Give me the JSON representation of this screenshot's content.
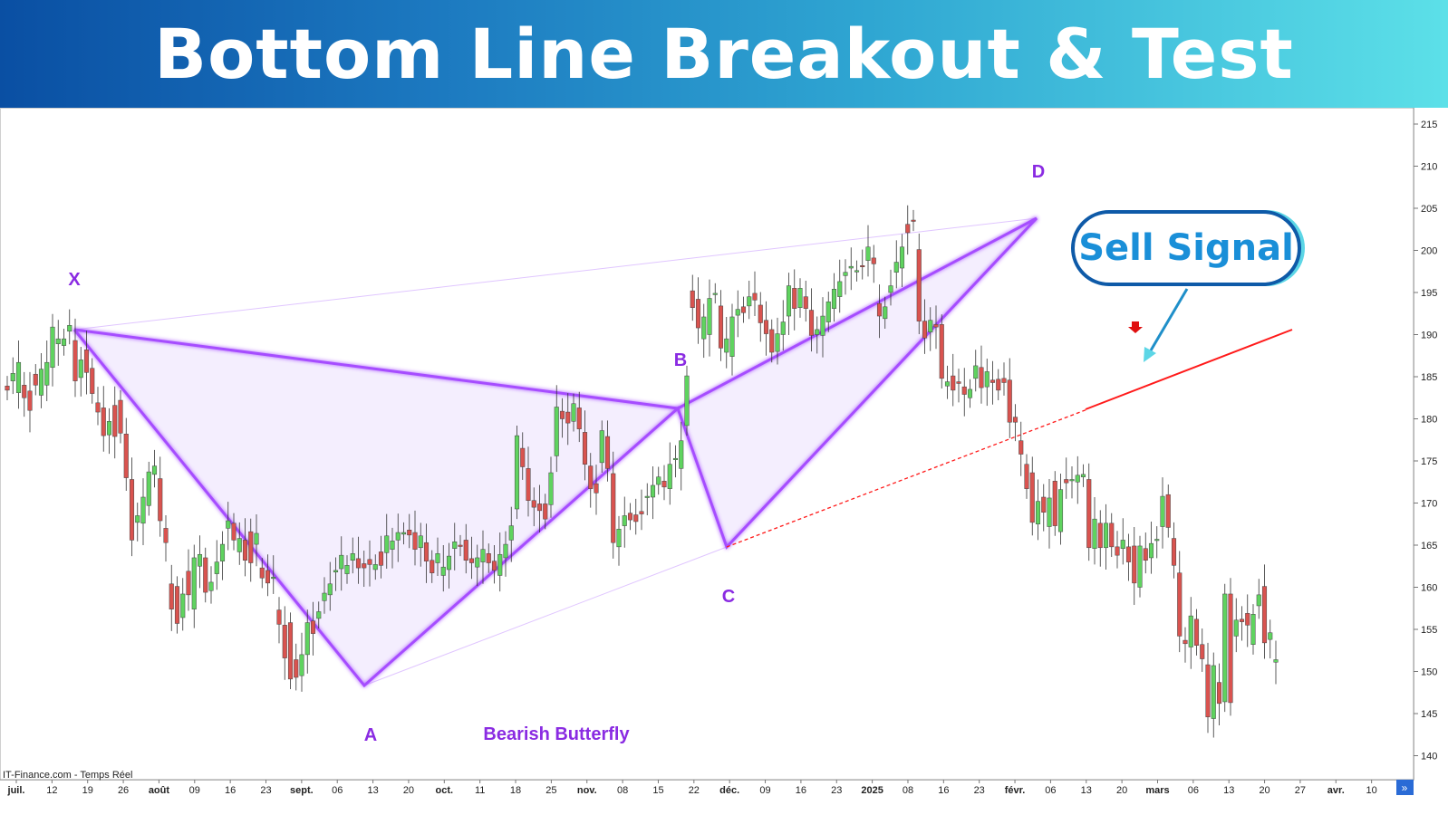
{
  "header": {
    "title": "Bottom Line Breakout & Test"
  },
  "annotations": {
    "sell_signal": "Sell Signal",
    "pattern_name": "Bearish Butterfly",
    "point_x": "X",
    "point_a": "A",
    "point_b": "B",
    "point_c": "C",
    "point_d": "D",
    "source": "IT-Finance.com - Temps Réel"
  },
  "colors": {
    "up_candle": "#5fd35f",
    "down_candle": "#d9534f",
    "pattern": "#a64dff",
    "pattern_fill": "#f4eefe",
    "breakout_line": "#ff1a1a",
    "arrow": "#1f8fc9"
  },
  "chart_data": {
    "type": "candlestick",
    "title": "",
    "xlabel": "",
    "ylabel": "",
    "ylim": [
      138,
      217
    ],
    "y_ticks": [
      215,
      210,
      205,
      200,
      195,
      190,
      185,
      180,
      175,
      170,
      165,
      160,
      155,
      150,
      145,
      140
    ],
    "x_ticks": [
      {
        "label": "juil.",
        "major": true
      },
      {
        "label": "12"
      },
      {
        "label": "19"
      },
      {
        "label": "26"
      },
      {
        "label": "août",
        "major": true
      },
      {
        "label": "09"
      },
      {
        "label": "16"
      },
      {
        "label": "23"
      },
      {
        "label": "sept.",
        "major": true
      },
      {
        "label": "06"
      },
      {
        "label": "13"
      },
      {
        "label": "20"
      },
      {
        "label": "oct.",
        "major": true
      },
      {
        "label": "11"
      },
      {
        "label": "18"
      },
      {
        "label": "25"
      },
      {
        "label": "nov.",
        "major": true
      },
      {
        "label": "08"
      },
      {
        "label": "15"
      },
      {
        "label": "22"
      },
      {
        "label": "déc.",
        "major": true
      },
      {
        "label": "09"
      },
      {
        "label": "16"
      },
      {
        "label": "23"
      },
      {
        "label": "2025",
        "major": true
      },
      {
        "label": "08"
      },
      {
        "label": "16"
      },
      {
        "label": "23"
      },
      {
        "label": "févr.",
        "major": true
      },
      {
        "label": "06"
      },
      {
        "label": "13"
      },
      {
        "label": "20"
      },
      {
        "label": "mars",
        "major": true
      },
      {
        "label": "06"
      },
      {
        "label": "13"
      },
      {
        "label": "20"
      },
      {
        "label": "27"
      },
      {
        "label": "avr.",
        "major": true
      },
      {
        "label": "10"
      }
    ],
    "series": [
      {
        "type": "candlestick",
        "values": [
          [
            183.9,
            183.4
          ],
          [
            184.5,
            185.4
          ],
          [
            183.1,
            186.7
          ],
          [
            184.0,
            182.5
          ],
          [
            183.3,
            181.0
          ],
          [
            185.3,
            184.0
          ],
          [
            182.8,
            185.9
          ],
          [
            184.0,
            186.7
          ],
          [
            186.1,
            190.9
          ],
          [
            188.9,
            189.5
          ],
          [
            188.7,
            189.5
          ],
          [
            190.4,
            191.1
          ],
          [
            189.3,
            184.5
          ],
          [
            184.9,
            187.0
          ],
          [
            188.2,
            185.5
          ],
          [
            186.0,
            183.0
          ],
          [
            181.9,
            180.8
          ],
          [
            181.3,
            178.0
          ],
          [
            178.1,
            179.7
          ],
          [
            181.6,
            177.9
          ],
          [
            182.2,
            178.3
          ],
          [
            178.2,
            173.0
          ],
          [
            172.8,
            165.6
          ],
          [
            167.7,
            168.5
          ],
          [
            167.6,
            170.7
          ],
          [
            169.7,
            173.7
          ],
          [
            173.4,
            174.4
          ],
          [
            172.9,
            167.9
          ],
          [
            167.0,
            165.3
          ],
          [
            160.4,
            157.4
          ],
          [
            160.1,
            155.7
          ],
          [
            156.4,
            159.2
          ],
          [
            161.9,
            159.1
          ],
          [
            157.4,
            163.5
          ],
          [
            162.5,
            163.9
          ],
          [
            163.5,
            159.4
          ],
          [
            159.6,
            160.6
          ],
          [
            161.6,
            163.0
          ],
          [
            163.1,
            165.1
          ],
          [
            167.0,
            167.9
          ],
          [
            167.6,
            165.6
          ],
          [
            164.2,
            165.8
          ],
          [
            165.6,
            163.2
          ],
          [
            166.6,
            162.9
          ],
          [
            165.1,
            166.4
          ],
          [
            162.3,
            161.1
          ],
          [
            162.0,
            160.5
          ],
          [
            161.1,
            161.2
          ],
          [
            157.3,
            155.6
          ],
          [
            155.5,
            151.6
          ],
          [
            155.8,
            149.1
          ],
          [
            151.4,
            149.3
          ],
          [
            149.5,
            152.0
          ],
          [
            152.0,
            155.8
          ],
          [
            156.0,
            154.5
          ],
          [
            156.3,
            157.1
          ],
          [
            158.4,
            159.3
          ],
          [
            159.1,
            160.4
          ],
          [
            161.8,
            162.0
          ],
          [
            162.2,
            163.8
          ],
          [
            161.6,
            162.6
          ],
          [
            163.2,
            164.0
          ],
          [
            163.4,
            162.3
          ],
          [
            162.8,
            162.3
          ],
          [
            163.3,
            162.7
          ],
          [
            162.1,
            162.7
          ],
          [
            164.2,
            162.6
          ],
          [
            164.1,
            166.1
          ],
          [
            164.5,
            165.5
          ],
          [
            165.6,
            166.5
          ],
          [
            166.3,
            166.5
          ],
          [
            166.8,
            166.2
          ],
          [
            166.5,
            164.5
          ],
          [
            164.7,
            166.1
          ],
          [
            165.3,
            163.1
          ],
          [
            163.2,
            161.7
          ],
          [
            162.9,
            164.0
          ],
          [
            161.4,
            162.4
          ],
          [
            162.1,
            163.7
          ],
          [
            164.6,
            165.4
          ],
          [
            165.0,
            164.9
          ],
          [
            165.6,
            163.2
          ],
          [
            163.4,
            162.9
          ],
          [
            162.4,
            163.5
          ],
          [
            163.0,
            164.5
          ],
          [
            164.0,
            162.9
          ],
          [
            163.1,
            162.0
          ],
          [
            161.4,
            163.9
          ],
          [
            163.5,
            165.1
          ],
          [
            165.6,
            167.3
          ],
          [
            169.3,
            178.0
          ],
          [
            176.5,
            174.3
          ],
          [
            174.1,
            170.3
          ],
          [
            170.3,
            169.5
          ],
          [
            169.9,
            169.1
          ],
          [
            169.9,
            168.1
          ],
          [
            169.8,
            173.6
          ],
          [
            175.6,
            181.4
          ],
          [
            180.9,
            180.0
          ],
          [
            180.8,
            179.5
          ],
          [
            179.7,
            181.8
          ],
          [
            181.3,
            178.8
          ],
          [
            178.4,
            174.6
          ],
          [
            174.4,
            171.7
          ],
          [
            172.3,
            171.2
          ],
          [
            174.8,
            178.6
          ],
          [
            177.9,
            174.1
          ],
          [
            173.5,
            165.3
          ],
          [
            164.8,
            166.9
          ],
          [
            167.3,
            168.5
          ],
          [
            168.8,
            168.0
          ],
          [
            168.6,
            167.8
          ],
          [
            169.0,
            168.7
          ],
          [
            170.8,
            170.8
          ],
          [
            170.7,
            172.1
          ],
          [
            172.2,
            173.1
          ],
          [
            172.6,
            171.9
          ],
          [
            171.7,
            174.6
          ],
          [
            175.3,
            175.3
          ],
          [
            174.1,
            177.4
          ],
          [
            179.2,
            185.1
          ],
          [
            195.2,
            193.2
          ],
          [
            194.2,
            190.8
          ],
          [
            189.5,
            192.1
          ],
          [
            190.0,
            194.3
          ],
          [
            194.9,
            194.9
          ],
          [
            193.4,
            188.4
          ],
          [
            187.9,
            189.5
          ],
          [
            187.4,
            192.1
          ],
          [
            192.3,
            193.0
          ],
          [
            193.3,
            192.6
          ],
          [
            193.4,
            194.5
          ],
          [
            194.9,
            194.1
          ],
          [
            193.5,
            191.4
          ],
          [
            191.7,
            190.1
          ],
          [
            190.6,
            187.9
          ],
          [
            188.0,
            190.1
          ],
          [
            190.0,
            191.5
          ],
          [
            192.2,
            195.8
          ],
          [
            195.5,
            193.1
          ],
          [
            193.2,
            195.5
          ],
          [
            194.5,
            193.1
          ],
          [
            192.9,
            189.9
          ],
          [
            190.0,
            190.6
          ],
          [
            189.9,
            192.2
          ],
          [
            191.5,
            193.9
          ],
          [
            193.1,
            195.4
          ],
          [
            194.5,
            196.3
          ],
          [
            197.0,
            197.4
          ],
          [
            197.9,
            198.1
          ],
          [
            197.5,
            197.6
          ],
          [
            198.2,
            198.1
          ],
          [
            198.8,
            200.4
          ],
          [
            199.1,
            198.4
          ],
          [
            193.7,
            192.2
          ],
          [
            191.9,
            193.3
          ],
          [
            195.0,
            195.8
          ],
          [
            197.4,
            198.6
          ],
          [
            197.9,
            200.4
          ],
          [
            203.1,
            202.1
          ],
          [
            203.6,
            203.5
          ],
          [
            200.1,
            191.6
          ],
          [
            191.6,
            189.6
          ],
          [
            190.3,
            191.7
          ],
          [
            191.2,
            190.9
          ],
          [
            191.2,
            184.8
          ],
          [
            183.9,
            184.4
          ],
          [
            185.1,
            183.4
          ],
          [
            184.4,
            184.2
          ],
          [
            183.8,
            182.9
          ],
          [
            182.5,
            183.5
          ],
          [
            184.8,
            186.3
          ],
          [
            186.1,
            183.7
          ],
          [
            183.8,
            185.6
          ],
          [
            184.6,
            184.3
          ],
          [
            184.7,
            183.4
          ],
          [
            184.8,
            184.3
          ],
          [
            184.6,
            179.6
          ],
          [
            180.2,
            179.6
          ],
          [
            177.4,
            175.8
          ],
          [
            174.6,
            171.7
          ],
          [
            173.6,
            167.7
          ],
          [
            167.5,
            170.2
          ],
          [
            170.7,
            168.9
          ],
          [
            167.2,
            170.6
          ],
          [
            172.6,
            167.3
          ],
          [
            166.6,
            171.6
          ],
          [
            172.8,
            172.4
          ],
          [
            172.8,
            172.8
          ],
          [
            172.5,
            173.3
          ],
          [
            173.1,
            173.4
          ],
          [
            172.8,
            164.7
          ],
          [
            164.6,
            168.1
          ],
          [
            167.6,
            164.7
          ],
          [
            164.7,
            167.6
          ],
          [
            167.6,
            164.8
          ],
          [
            164.8,
            163.8
          ],
          [
            164.6,
            165.6
          ],
          [
            164.8,
            163.0
          ],
          [
            164.9,
            160.5
          ],
          [
            160.0,
            164.9
          ],
          [
            164.6,
            163.2
          ],
          [
            163.5,
            165.2
          ],
          [
            165.7,
            165.7
          ],
          [
            167.2,
            170.8
          ],
          [
            171.0,
            167.1
          ],
          [
            165.8,
            162.6
          ],
          [
            161.7,
            154.2
          ],
          [
            153.7,
            153.3
          ],
          [
            152.9,
            156.6
          ],
          [
            156.2,
            153.1
          ],
          [
            153.2,
            151.5
          ],
          [
            150.8,
            144.6
          ],
          [
            144.4,
            150.7
          ],
          [
            148.7,
            146.2
          ],
          [
            146.4,
            159.2
          ],
          [
            159.2,
            146.3
          ],
          [
            154.2,
            156.1
          ],
          [
            156.2,
            155.9
          ],
          [
            156.9,
            155.5
          ],
          [
            153.2,
            156.8
          ],
          [
            157.8,
            159.1
          ],
          [
            160.1,
            153.4
          ],
          [
            153.8,
            154.6
          ],
          [
            151.1,
            151.4
          ]
        ]
      }
    ],
    "harmonic_pattern": {
      "name": "Bearish Butterfly",
      "points": {
        "X": 191.0,
        "A": 148.5,
        "B": 181.4,
        "C": 165.0,
        "D": 204.0
      }
    },
    "grid": false,
    "legend": "none"
  }
}
